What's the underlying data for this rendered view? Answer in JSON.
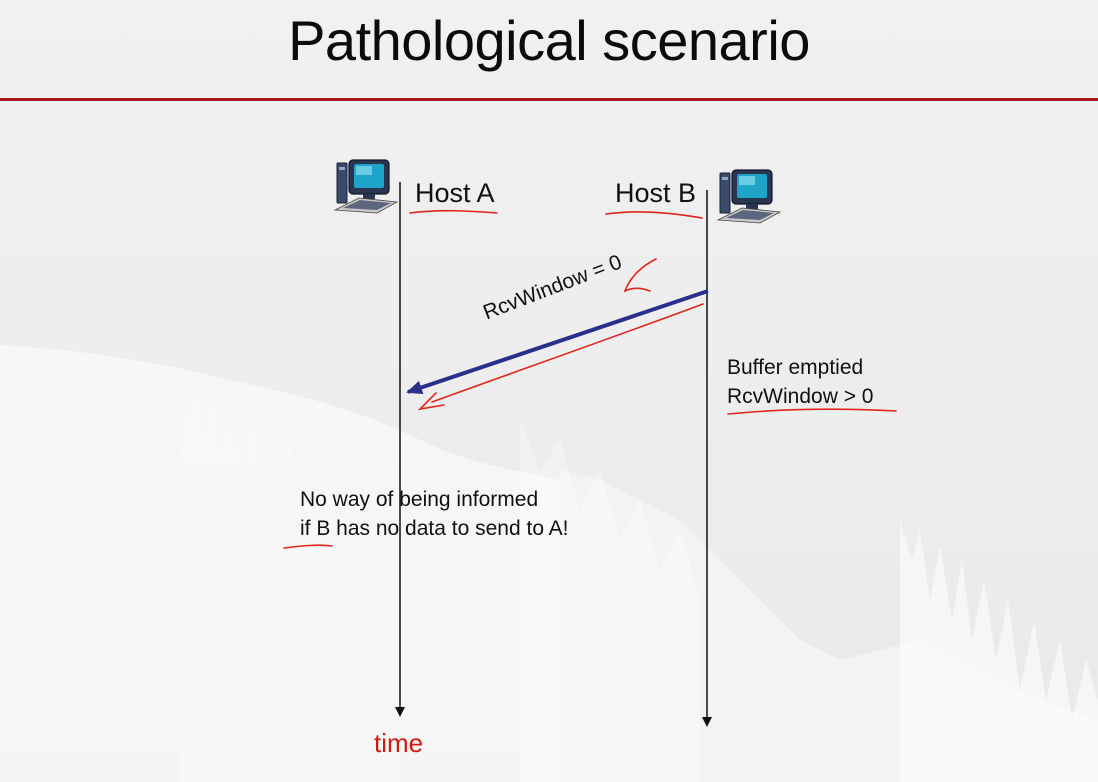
{
  "slide": {
    "title": "Pathological scenario"
  },
  "diagram": {
    "host_a": "Host A",
    "host_b": "Host B",
    "message": "RcvWindow = 0",
    "buffer_note_line1": "Buffer emptied",
    "buffer_note_line2": "RcvWindow > 0",
    "note_line1": "No way of being informed",
    "note_line2": "if B has no data to send to A!",
    "time_label": "time"
  },
  "colors": {
    "title_rule": "#a4161a",
    "message_arrow": "#2b2f8c",
    "annotation_ink": "#e0261c",
    "time_label": "#d11a14"
  },
  "icons": {
    "host_a": "desktop-computer-icon",
    "host_b": "desktop-computer-icon"
  }
}
